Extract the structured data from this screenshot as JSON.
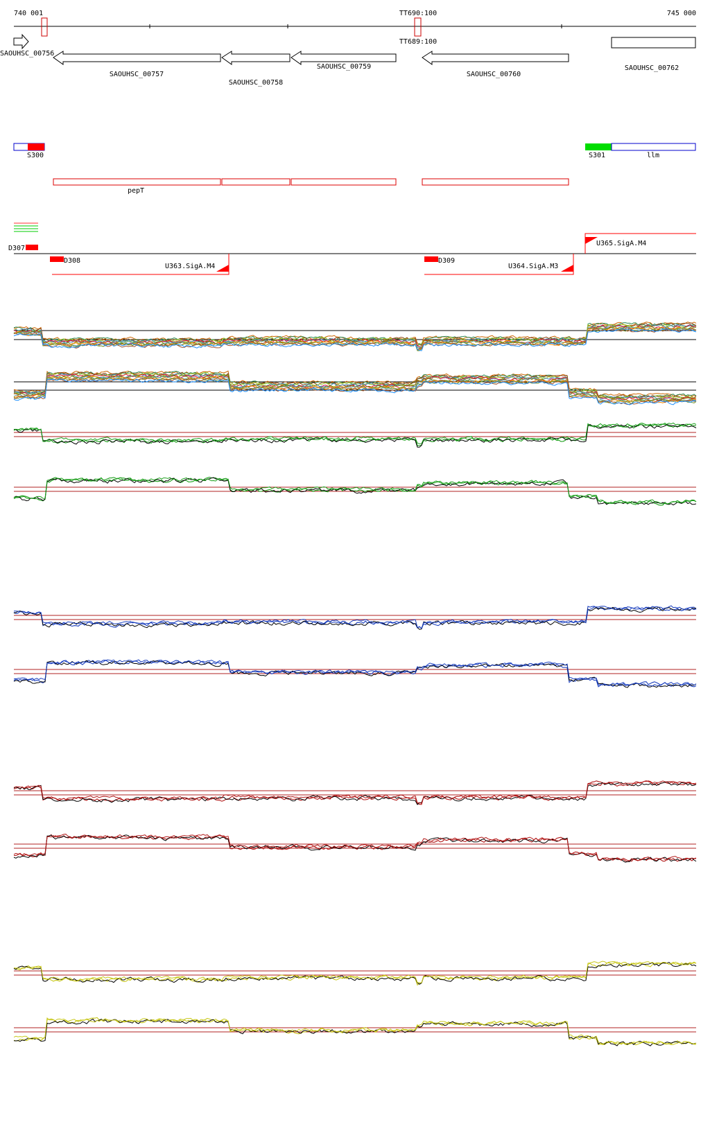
{
  "ruler": {
    "start_label": "740 001",
    "end_label": "745 000",
    "marker_top_label": "TT690:100",
    "marker_bottom_label": "TT689:100"
  },
  "genes": [
    {
      "label": "SAOUHSC_00756",
      "strand": "+"
    },
    {
      "label": "SAOUHSC_00757",
      "strand": "-"
    },
    {
      "label": "SAOUHSC_00758",
      "strand": "-"
    },
    {
      "label": "SAOUHSC_00759",
      "strand": "-"
    },
    {
      "label": "SAOUHSC_00760",
      "strand": "-"
    },
    {
      "label": "SAOUHSC_00762",
      "strand": "none"
    }
  ],
  "features": [
    {
      "label": "S300",
      "color": "#ff0000"
    },
    {
      "label": "S301",
      "color": "#00dd00"
    },
    {
      "label": "llm",
      "color": "#0000cc"
    }
  ],
  "operon": {
    "label": "pepT",
    "color": "#dd0000"
  },
  "segments": [
    {
      "label": "D307"
    },
    {
      "label": "D308"
    },
    {
      "label": "D309"
    },
    {
      "label": "U363.SigA.M4"
    },
    {
      "label": "U364.SigA.M3"
    },
    {
      "label": "U365.SigA.M4"
    }
  ],
  "colors": {
    "gene_outline": "#000000",
    "feature_red": "#ff0000",
    "feature_green": "#00dd00",
    "feature_blue": "#0000cc",
    "threshold_line": "#b22222",
    "panel_green": "#1a9e1a",
    "panel_blue": "#1a3fbf",
    "panel_red": "#b21a1a",
    "panel_yellow": "#c8c81a"
  }
}
